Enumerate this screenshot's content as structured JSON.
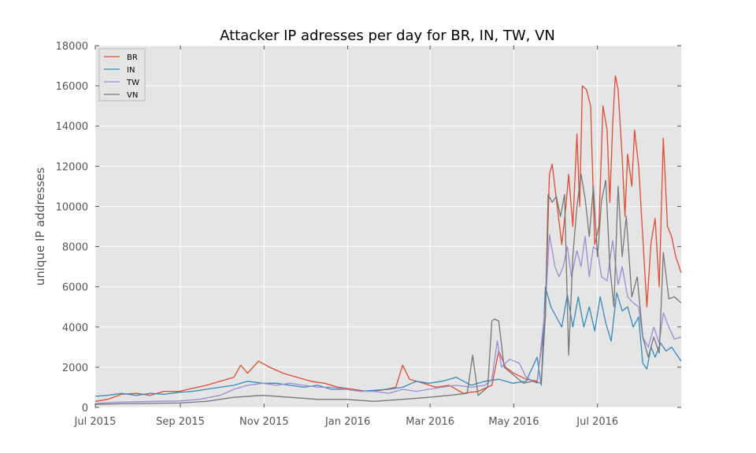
{
  "chart_data": {
    "type": "line",
    "title": "Attacker IP adresses per day for BR, IN, TW, VN",
    "xlabel": "",
    "ylabel": "unique IP addresses",
    "xlim": [
      "2015-07-01",
      "2016-08-31"
    ],
    "ylim": [
      0,
      18000
    ],
    "y_ticks": [
      0,
      2000,
      4000,
      6000,
      8000,
      10000,
      12000,
      14000,
      16000,
      18000
    ],
    "x_ticks": [
      {
        "date": "2015-07-01",
        "label": "Jul 2015"
      },
      {
        "date": "2015-09-01",
        "label": "Sep 2015"
      },
      {
        "date": "2015-11-01",
        "label": "Nov 2015"
      },
      {
        "date": "2016-01-01",
        "label": "Jan 2016"
      },
      {
        "date": "2016-03-01",
        "label": "Mar 2016"
      },
      {
        "date": "2016-05-01",
        "label": "May 2016"
      },
      {
        "date": "2016-07-01",
        "label": "Jul 2016"
      }
    ],
    "grid": true,
    "legend": "top-left",
    "series": [
      {
        "name": "BR",
        "color": "#e24a33",
        "points": [
          [
            "2015-07-01",
            300
          ],
          [
            "2015-07-10",
            400
          ],
          [
            "2015-07-20",
            650
          ],
          [
            "2015-07-31",
            700
          ],
          [
            "2015-08-10",
            600
          ],
          [
            "2015-08-20",
            800
          ],
          [
            "2015-08-31",
            800
          ],
          [
            "2015-09-10",
            950
          ],
          [
            "2015-09-20",
            1100
          ],
          [
            "2015-09-30",
            1300
          ],
          [
            "2015-10-10",
            1500
          ],
          [
            "2015-10-15",
            2100
          ],
          [
            "2015-10-20",
            1700
          ],
          [
            "2015-10-28",
            2300
          ],
          [
            "2015-11-05",
            2000
          ],
          [
            "2015-11-15",
            1700
          ],
          [
            "2015-11-25",
            1500
          ],
          [
            "2015-12-05",
            1300
          ],
          [
            "2015-12-15",
            1200
          ],
          [
            "2015-12-25",
            1000
          ],
          [
            "2016-01-05",
            900
          ],
          [
            "2016-01-15",
            800
          ],
          [
            "2016-01-25",
            850
          ],
          [
            "2016-02-05",
            1000
          ],
          [
            "2016-02-10",
            2100
          ],
          [
            "2016-02-15",
            1400
          ],
          [
            "2016-02-25",
            1200
          ],
          [
            "2016-03-05",
            1000
          ],
          [
            "2016-03-15",
            1100
          ],
          [
            "2016-03-25",
            700
          ],
          [
            "2016-04-05",
            800
          ],
          [
            "2016-04-15",
            1100
          ],
          [
            "2016-04-20",
            2800
          ],
          [
            "2016-04-25",
            2000
          ],
          [
            "2016-05-01",
            1700
          ],
          [
            "2016-05-10",
            1400
          ],
          [
            "2016-05-18",
            1300
          ],
          [
            "2016-05-24",
            4500
          ],
          [
            "2016-05-27",
            11600
          ],
          [
            "2016-05-29",
            12100
          ],
          [
            "2016-06-02",
            9800
          ],
          [
            "2016-06-05",
            8100
          ],
          [
            "2016-06-08",
            10000
          ],
          [
            "2016-06-10",
            11600
          ],
          [
            "2016-06-13",
            9000
          ],
          [
            "2016-06-16",
            13600
          ],
          [
            "2016-06-18",
            10000
          ],
          [
            "2016-06-20",
            16000
          ],
          [
            "2016-06-23",
            15800
          ],
          [
            "2016-06-26",
            15000
          ],
          [
            "2016-06-29",
            8100
          ],
          [
            "2016-07-02",
            9000
          ],
          [
            "2016-07-05",
            15000
          ],
          [
            "2016-07-08",
            13800
          ],
          [
            "2016-07-10",
            10200
          ],
          [
            "2016-07-12",
            14000
          ],
          [
            "2016-07-14",
            16500
          ],
          [
            "2016-07-16",
            15800
          ],
          [
            "2016-07-19",
            12400
          ],
          [
            "2016-07-21",
            9500
          ],
          [
            "2016-07-23",
            12600
          ],
          [
            "2016-07-26",
            11000
          ],
          [
            "2016-07-28",
            13800
          ],
          [
            "2016-07-31",
            12000
          ],
          [
            "2016-08-03",
            8500
          ],
          [
            "2016-08-06",
            5000
          ],
          [
            "2016-08-09",
            8200
          ],
          [
            "2016-08-12",
            9400
          ],
          [
            "2016-08-15",
            6000
          ],
          [
            "2016-08-18",
            13400
          ],
          [
            "2016-08-21",
            9000
          ],
          [
            "2016-08-24",
            8500
          ],
          [
            "2016-08-27",
            7500
          ],
          [
            "2016-08-31",
            6700
          ]
        ]
      },
      {
        "name": "IN",
        "color": "#348abd",
        "points": [
          [
            "2015-07-01",
            550
          ],
          [
            "2015-07-10",
            600
          ],
          [
            "2015-07-20",
            700
          ],
          [
            "2015-07-31",
            600
          ],
          [
            "2015-08-10",
            700
          ],
          [
            "2015-08-20",
            650
          ],
          [
            "2015-08-31",
            750
          ],
          [
            "2015-09-10",
            800
          ],
          [
            "2015-09-20",
            900
          ],
          [
            "2015-09-30",
            1000
          ],
          [
            "2015-10-10",
            1100
          ],
          [
            "2015-10-20",
            1300
          ],
          [
            "2015-10-31",
            1200
          ],
          [
            "2015-11-10",
            1200
          ],
          [
            "2015-11-20",
            1100
          ],
          [
            "2015-11-30",
            1000
          ],
          [
            "2015-12-10",
            1100
          ],
          [
            "2015-12-20",
            900
          ],
          [
            "2015-12-31",
            900
          ],
          [
            "2016-01-10",
            800
          ],
          [
            "2016-01-20",
            850
          ],
          [
            "2016-01-31",
            900
          ],
          [
            "2016-02-10",
            1000
          ],
          [
            "2016-02-20",
            1300
          ],
          [
            "2016-02-29",
            1200
          ],
          [
            "2016-03-10",
            1300
          ],
          [
            "2016-03-20",
            1500
          ],
          [
            "2016-03-31",
            1100
          ],
          [
            "2016-04-10",
            1300
          ],
          [
            "2016-04-20",
            1400
          ],
          [
            "2016-04-30",
            1200
          ],
          [
            "2016-05-10",
            1300
          ],
          [
            "2016-05-18",
            2500
          ],
          [
            "2016-05-21",
            1100
          ],
          [
            "2016-05-24",
            6000
          ],
          [
            "2016-05-28",
            5000
          ],
          [
            "2016-06-01",
            4500
          ],
          [
            "2016-06-05",
            4000
          ],
          [
            "2016-06-09",
            5600
          ],
          [
            "2016-06-13",
            4000
          ],
          [
            "2016-06-17",
            5500
          ],
          [
            "2016-06-21",
            4000
          ],
          [
            "2016-06-25",
            5000
          ],
          [
            "2016-06-29",
            3800
          ],
          [
            "2016-07-03",
            5500
          ],
          [
            "2016-07-07",
            4200
          ],
          [
            "2016-07-11",
            3300
          ],
          [
            "2016-07-15",
            5700
          ],
          [
            "2016-07-19",
            4800
          ],
          [
            "2016-07-23",
            5000
          ],
          [
            "2016-07-27",
            4000
          ],
          [
            "2016-07-31",
            4500
          ],
          [
            "2016-08-03",
            2200
          ],
          [
            "2016-08-06",
            1900
          ],
          [
            "2016-08-09",
            3000
          ],
          [
            "2016-08-12",
            2500
          ],
          [
            "2016-08-16",
            3200
          ],
          [
            "2016-08-20",
            2800
          ],
          [
            "2016-08-24",
            3000
          ],
          [
            "2016-08-31",
            2300
          ]
        ]
      },
      {
        "name": "TW",
        "color": "#988ed5",
        "points": [
          [
            "2015-07-01",
            200
          ],
          [
            "2015-07-15",
            250
          ],
          [
            "2015-07-31",
            280
          ],
          [
            "2015-08-15",
            300
          ],
          [
            "2015-08-31",
            320
          ],
          [
            "2015-09-15",
            400
          ],
          [
            "2015-09-30",
            600
          ],
          [
            "2015-10-10",
            900
          ],
          [
            "2015-10-20",
            1100
          ],
          [
            "2015-10-31",
            1200
          ],
          [
            "2015-11-10",
            1100
          ],
          [
            "2015-11-20",
            1200
          ],
          [
            "2015-11-30",
            1100
          ],
          [
            "2015-12-10",
            1000
          ],
          [
            "2015-12-20",
            1000
          ],
          [
            "2015-12-31",
            900
          ],
          [
            "2016-01-10",
            800
          ],
          [
            "2016-01-20",
            800
          ],
          [
            "2016-01-31",
            700
          ],
          [
            "2016-02-10",
            900
          ],
          [
            "2016-02-20",
            800
          ],
          [
            "2016-02-29",
            900
          ],
          [
            "2016-03-10",
            1000
          ],
          [
            "2016-03-20",
            1100
          ],
          [
            "2016-03-31",
            1000
          ],
          [
            "2016-04-10",
            1100
          ],
          [
            "2016-04-15",
            1400
          ],
          [
            "2016-04-19",
            3300
          ],
          [
            "2016-04-22",
            2000
          ],
          [
            "2016-04-28",
            2400
          ],
          [
            "2016-05-05",
            2200
          ],
          [
            "2016-05-10",
            1500
          ],
          [
            "2016-05-18",
            1200
          ],
          [
            "2016-05-24",
            5000
          ],
          [
            "2016-05-27",
            8600
          ],
          [
            "2016-05-31",
            7000
          ],
          [
            "2016-06-03",
            6500
          ],
          [
            "2016-06-06",
            7000
          ],
          [
            "2016-06-09",
            8000
          ],
          [
            "2016-06-12",
            6500
          ],
          [
            "2016-06-16",
            7800
          ],
          [
            "2016-06-19",
            7000
          ],
          [
            "2016-06-22",
            8500
          ],
          [
            "2016-06-25",
            6500
          ],
          [
            "2016-06-28",
            8000
          ],
          [
            "2016-07-01",
            7800
          ],
          [
            "2016-07-04",
            6500
          ],
          [
            "2016-07-08",
            6300
          ],
          [
            "2016-07-12",
            8300
          ],
          [
            "2016-07-16",
            6100
          ],
          [
            "2016-07-19",
            7000
          ],
          [
            "2016-07-23",
            5500
          ],
          [
            "2016-07-27",
            5200
          ],
          [
            "2016-07-31",
            5000
          ],
          [
            "2016-08-03",
            3500
          ],
          [
            "2016-08-07",
            3000
          ],
          [
            "2016-08-11",
            4000
          ],
          [
            "2016-08-15",
            3200
          ],
          [
            "2016-08-18",
            4700
          ],
          [
            "2016-08-22",
            4000
          ],
          [
            "2016-08-26",
            3400
          ],
          [
            "2016-08-31",
            3500
          ]
        ]
      },
      {
        "name": "VN",
        "color": "#777777",
        "points": [
          [
            "2015-07-01",
            150
          ],
          [
            "2015-07-20",
            180
          ],
          [
            "2015-08-10",
            200
          ],
          [
            "2015-08-31",
            220
          ],
          [
            "2015-09-20",
            300
          ],
          [
            "2015-10-10",
            500
          ],
          [
            "2015-10-31",
            600
          ],
          [
            "2015-11-20",
            500
          ],
          [
            "2015-12-10",
            400
          ],
          [
            "2015-12-31",
            400
          ],
          [
            "2016-01-20",
            300
          ],
          [
            "2016-02-10",
            400
          ],
          [
            "2016-02-29",
            500
          ],
          [
            "2016-03-15",
            600
          ],
          [
            "2016-03-28",
            700
          ],
          [
            "2016-04-01",
            2600
          ],
          [
            "2016-04-05",
            600
          ],
          [
            "2016-04-12",
            1000
          ],
          [
            "2016-04-15",
            4300
          ],
          [
            "2016-04-17",
            4400
          ],
          [
            "2016-04-20",
            4300
          ],
          [
            "2016-04-24",
            2000
          ],
          [
            "2016-05-01",
            1600
          ],
          [
            "2016-05-08",
            1200
          ],
          [
            "2016-05-15",
            1300
          ],
          [
            "2016-05-21",
            1200
          ],
          [
            "2016-05-24",
            4500
          ],
          [
            "2016-05-26",
            10600
          ],
          [
            "2016-05-29",
            10200
          ],
          [
            "2016-06-01",
            10500
          ],
          [
            "2016-06-04",
            9500
          ],
          [
            "2016-06-07",
            10600
          ],
          [
            "2016-06-10",
            2600
          ],
          [
            "2016-06-13",
            7500
          ],
          [
            "2016-06-16",
            10000
          ],
          [
            "2016-06-19",
            11600
          ],
          [
            "2016-06-22",
            10400
          ],
          [
            "2016-06-25",
            8500
          ],
          [
            "2016-06-28",
            11000
          ],
          [
            "2016-07-01",
            7500
          ],
          [
            "2016-07-04",
            10300
          ],
          [
            "2016-07-07",
            11300
          ],
          [
            "2016-07-10",
            7000
          ],
          [
            "2016-07-13",
            5000
          ],
          [
            "2016-07-16",
            11000
          ],
          [
            "2016-07-19",
            7500
          ],
          [
            "2016-07-22",
            9500
          ],
          [
            "2016-07-26",
            5500
          ],
          [
            "2016-07-30",
            6500
          ],
          [
            "2016-08-03",
            3500
          ],
          [
            "2016-08-07",
            2500
          ],
          [
            "2016-08-11",
            3500
          ],
          [
            "2016-08-15",
            2700
          ],
          [
            "2016-08-18",
            7700
          ],
          [
            "2016-08-22",
            5400
          ],
          [
            "2016-08-26",
            5500
          ],
          [
            "2016-08-31",
            5200
          ]
        ]
      }
    ]
  }
}
